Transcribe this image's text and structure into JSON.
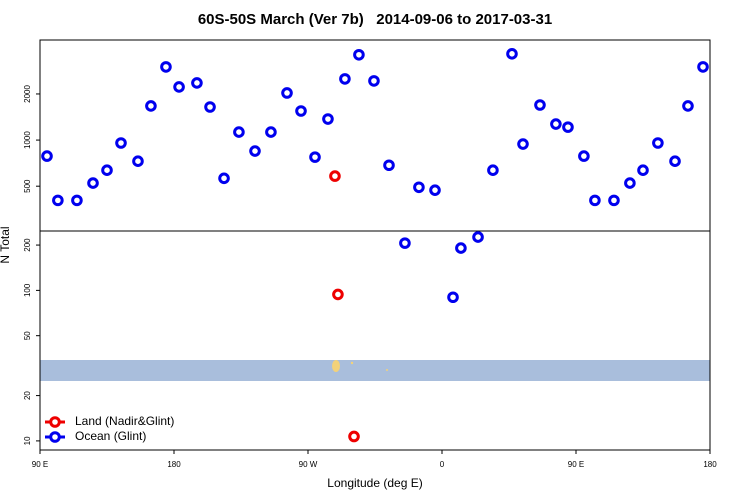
{
  "chart_data": [
    {
      "type": "scatter",
      "title": "60S-50S March (Ver 7b)   2014-09-06 to 2017-03-31",
      "ylabel": "N Total",
      "xlim": [
        90,
        540
      ],
      "ylim": [
        255,
        4500
      ],
      "ylog": true,
      "yticks": [
        500,
        1000,
        2000
      ],
      "series": [
        {
          "color": "#0000ee",
          "x": [
            94.7,
            102,
            114.8,
            125.6,
            135,
            144.4,
            155.8,
            164.5,
            174.6,
            183.4,
            195.4,
            204.2,
            213.6,
            223.6,
            234.4,
            245.1,
            255.9,
            265.3,
            274.7,
            283.4,
            294.8,
            304.2,
            314.3,
            324.4,
            344.5,
            355.3,
            394.2,
            407,
            414.4,
            425.8,
            436.5,
            444.6,
            455.3,
            462.7,
            475.5,
            486.2,
            495,
            505,
            516.5,
            525.2,
            535.3
          ],
          "values": [
            786,
            404,
            404,
            524,
            636,
            957,
            728,
            1670,
            3004,
            2222,
            2360,
            1644,
            563,
            1128,
            848,
            1128,
            2030,
            1548,
            774,
            1372,
            2508,
            3604,
            2434,
            685,
            492,
            471,
            636,
            3656,
            942,
            1694,
            1272,
            1215,
            786,
            404,
            404,
            524,
            636,
            957,
            728,
            1670,
            3004
          ]
        },
        {
          "color": "#ee0000",
          "x": [
            288.1
          ],
          "values": [
            582
          ]
        }
      ]
    },
    {
      "type": "scatter",
      "xlabel": "Longitude (deg E)",
      "xlim": [
        90,
        540
      ],
      "ylim": [
        8.7,
        248
      ],
      "ylog": true,
      "yticks": [
        10,
        20,
        50,
        100,
        200
      ],
      "xticks": [
        {
          "value": 90,
          "label": "90 E"
        },
        180,
        {
          "value": 270,
          "label": "90 W"
        },
        {
          "value": 360,
          "label": "0"
        },
        {
          "value": 450,
          "label": "90 E"
        },
        {
          "value": 540,
          "label": "180"
        }
      ],
      "legend": "bottomleft",
      "series": [
        {
          "name": "Land (Nadir&Glint)",
          "color": "#ee0000",
          "x": [
            290.1,
            300.9
          ],
          "values": [
            94,
            10.7
          ]
        },
        {
          "name": "Ocean (Glint)",
          "color": "#0000ee",
          "x": [
            335.1,
            372.7,
            384.2,
            367.4
          ],
          "values": [
            206,
            191,
            226,
            90
          ]
        }
      ]
    }
  ]
}
